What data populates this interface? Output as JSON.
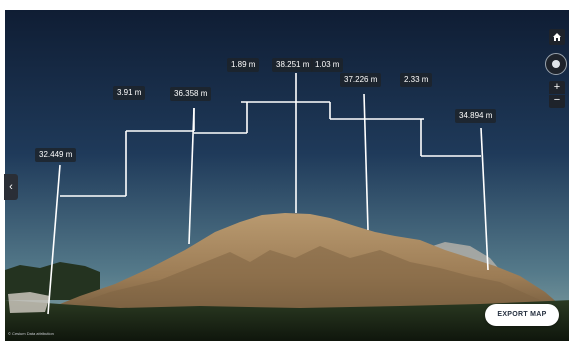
{
  "measurements": [
    {
      "id": "m1",
      "label": "32.449 m"
    },
    {
      "id": "m2",
      "label": "3.91 m"
    },
    {
      "id": "m3",
      "label": "36.358 m"
    },
    {
      "id": "m4",
      "label": "1.89 m"
    },
    {
      "id": "m5",
      "label": "38.251 m"
    },
    {
      "id": "m6",
      "label": "1.03 m"
    },
    {
      "id": "m7",
      "label": "37.226 m"
    },
    {
      "id": "m8",
      "label": "2.33 m"
    },
    {
      "id": "m9",
      "label": "34.894 m"
    }
  ],
  "controls": {
    "home_icon": "home-icon",
    "compass_icon": "compass-icon",
    "zoom_in_label": "+",
    "zoom_out_label": "−",
    "side_tab_label": "‹"
  },
  "export_button": {
    "label": "EXPORT MAP"
  },
  "attribution": "© Cesium  Data attribution",
  "colors": {
    "sky_top": "#0f1d33",
    "sky_bottom": "#7b9aa0",
    "pile": "#a8875e",
    "ground": "#1c2a17",
    "measure_line": "#ffffff"
  }
}
